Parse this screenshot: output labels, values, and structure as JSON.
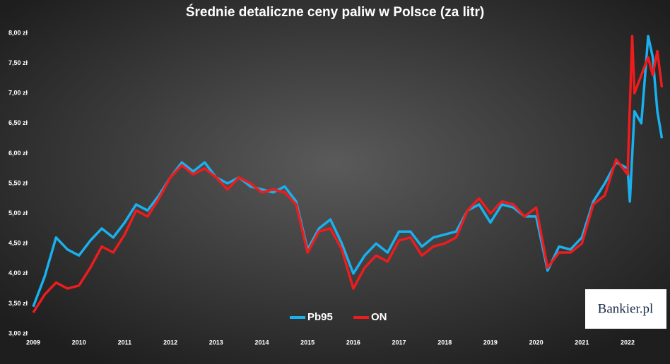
{
  "chart_data": {
    "type": "line",
    "title": "Średnie detaliczne ceny paliw w Polsce (za litr)",
    "logo": "Bankier.pl",
    "xlim": [
      2009,
      2022.85
    ],
    "xticks": [
      2009,
      2010,
      2011,
      2012,
      2013,
      2014,
      2015,
      2016,
      2017,
      2018,
      2019,
      2020,
      2021,
      2022
    ],
    "ylim": [
      3,
      8
    ],
    "yticks": [
      {
        "value": 3,
        "label": "3,00 zł"
      },
      {
        "value": 3.5,
        "label": "3,50 zł"
      },
      {
        "value": 4,
        "label": "4,00 zł"
      },
      {
        "value": 4.5,
        "label": "4,50 zł"
      },
      {
        "value": 5,
        "label": "5,00 zł"
      },
      {
        "value": 5.5,
        "label": "5,50 zł"
      },
      {
        "value": 6,
        "label": "6,00 zł"
      },
      {
        "value": 6.5,
        "label": "6,50 zł"
      },
      {
        "value": 7,
        "label": "7,00 zł"
      },
      {
        "value": 7.5,
        "label": "7,50 zł"
      },
      {
        "value": 8,
        "label": "8,00 zł"
      }
    ],
    "grid": false,
    "legend": "bottom",
    "series": [
      {
        "name": "Pb95",
        "color": "#1ab0ee",
        "x": [
          2009,
          2009.25,
          2009.5,
          2009.75,
          2010,
          2010.25,
          2010.5,
          2010.75,
          2011,
          2011.25,
          2011.5,
          2011.75,
          2012,
          2012.25,
          2012.5,
          2012.75,
          2013,
          2013.25,
          2013.5,
          2013.75,
          2014,
          2014.25,
          2014.5,
          2014.75,
          2015,
          2015.25,
          2015.5,
          2015.75,
          2016,
          2016.25,
          2016.5,
          2016.75,
          2017,
          2017.25,
          2017.5,
          2017.75,
          2018,
          2018.25,
          2018.5,
          2018.75,
          2019,
          2019.25,
          2019.5,
          2019.75,
          2020,
          2020.25,
          2020.5,
          2020.75,
          2021,
          2021.25,
          2021.5,
          2021.75,
          2022,
          2022.05,
          2022.15,
          2022.3,
          2022.45,
          2022.55,
          2022.65,
          2022.75
        ],
        "values": [
          3.45,
          3.95,
          4.6,
          4.4,
          4.3,
          4.55,
          4.75,
          4.6,
          4.85,
          5.15,
          5.05,
          5.3,
          5.6,
          5.85,
          5.7,
          5.85,
          5.6,
          5.5,
          5.6,
          5.45,
          5.4,
          5.35,
          5.45,
          5.2,
          4.4,
          4.75,
          4.9,
          4.5,
          4.0,
          4.3,
          4.5,
          4.35,
          4.7,
          4.7,
          4.45,
          4.6,
          4.65,
          4.7,
          5.05,
          5.15,
          4.85,
          5.15,
          5.1,
          4.95,
          4.95,
          4.05,
          4.45,
          4.4,
          4.6,
          5.2,
          5.5,
          5.85,
          5.75,
          5.2,
          6.7,
          6.5,
          7.95,
          7.6,
          6.7,
          6.25
        ]
      },
      {
        "name": "ON",
        "color": "#ee1c1c",
        "x": [
          2009,
          2009.25,
          2009.5,
          2009.75,
          2010,
          2010.25,
          2010.5,
          2010.75,
          2011,
          2011.25,
          2011.5,
          2011.75,
          2012,
          2012.25,
          2012.5,
          2012.75,
          2013,
          2013.25,
          2013.5,
          2013.75,
          2014,
          2014.25,
          2014.5,
          2014.75,
          2015,
          2015.25,
          2015.5,
          2015.75,
          2016,
          2016.25,
          2016.5,
          2016.75,
          2017,
          2017.25,
          2017.5,
          2017.75,
          2018,
          2018.25,
          2018.5,
          2018.75,
          2019,
          2019.25,
          2019.5,
          2019.75,
          2020,
          2020.25,
          2020.5,
          2020.75,
          2021,
          2021.25,
          2021.5,
          2021.75,
          2022,
          2022.1,
          2022.15,
          2022.3,
          2022.45,
          2022.55,
          2022.65,
          2022.75
        ],
        "values": [
          3.35,
          3.65,
          3.85,
          3.75,
          3.8,
          4.1,
          4.45,
          4.35,
          4.65,
          5.05,
          4.95,
          5.25,
          5.6,
          5.8,
          5.65,
          5.75,
          5.6,
          5.4,
          5.6,
          5.5,
          5.35,
          5.4,
          5.35,
          5.15,
          4.35,
          4.7,
          4.75,
          4.4,
          3.75,
          4.1,
          4.3,
          4.2,
          4.55,
          4.6,
          4.3,
          4.45,
          4.5,
          4.6,
          5.05,
          5.25,
          5.0,
          5.2,
          5.15,
          4.95,
          5.1,
          4.1,
          4.35,
          4.35,
          4.5,
          5.15,
          5.3,
          5.9,
          5.65,
          7.95,
          7.0,
          7.3,
          7.6,
          7.3,
          7.7,
          7.1
        ]
      }
    ]
  }
}
